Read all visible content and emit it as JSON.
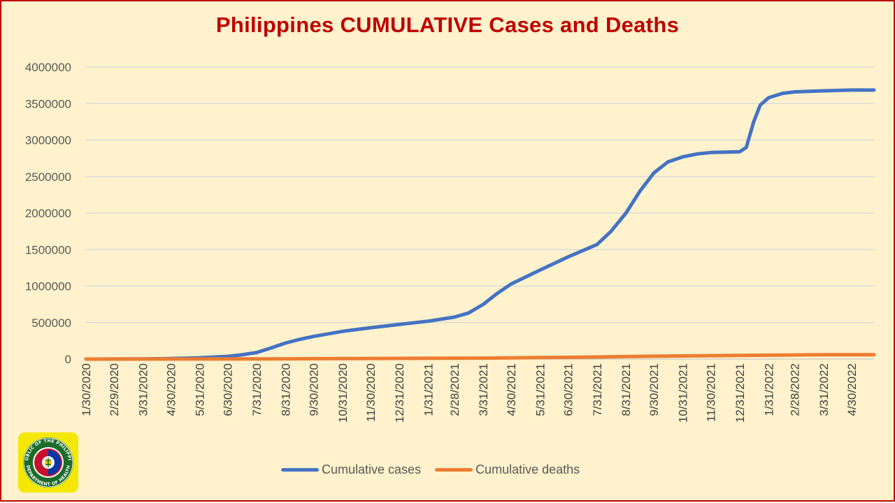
{
  "chart_data": {
    "type": "line",
    "title": "Philippines CUMULATIVE Cases and Deaths",
    "xlabel": "",
    "ylabel": "",
    "ylim": [
      0,
      4000000
    ],
    "yticks": [
      0,
      500000,
      1000000,
      1500000,
      2000000,
      2500000,
      3000000,
      3500000,
      4000000
    ],
    "ytick_labels": [
      "0",
      "500000",
      "1000000",
      "1500000",
      "2000000",
      "2500000",
      "3000000",
      "3500000",
      "4000000"
    ],
    "xlim": [
      "1/30/2020",
      "5/24/2022"
    ],
    "xtick_labels": [
      "1/30/2020",
      "2/29/2020",
      "3/31/2020",
      "4/30/2020",
      "5/31/2020",
      "6/30/2020",
      "7/31/2020",
      "8/31/2020",
      "9/30/2020",
      "10/31/2020",
      "11/30/2020",
      "12/31/2020",
      "1/31/2021",
      "2/28/2021",
      "3/31/2021",
      "4/30/2021",
      "5/31/2021",
      "6/30/2021",
      "7/31/2021",
      "8/31/2021",
      "9/30/2021",
      "10/31/2021",
      "11/30/2021",
      "12/31/2021",
      "1/31/2022",
      "2/28/2022",
      "3/31/2022",
      "4/30/2022"
    ],
    "grid": true,
    "legend_position": "bottom",
    "series": [
      {
        "name": "Cumulative cases",
        "color": "#4472c4",
        "points": [
          [
            "1/30/2020",
            0
          ],
          [
            "3/31/2020",
            2000
          ],
          [
            "4/30/2020",
            8000
          ],
          [
            "5/31/2020",
            18000
          ],
          [
            "6/30/2020",
            37000
          ],
          [
            "7/15/2020",
            58000
          ],
          [
            "7/31/2020",
            90000
          ],
          [
            "8/15/2020",
            150000
          ],
          [
            "8/31/2020",
            220000
          ],
          [
            "9/15/2020",
            270000
          ],
          [
            "9/30/2020",
            310000
          ],
          [
            "10/31/2020",
            380000
          ],
          [
            "11/30/2020",
            430000
          ],
          [
            "12/31/2020",
            475000
          ],
          [
            "1/31/2021",
            520000
          ],
          [
            "2/28/2021",
            575000
          ],
          [
            "3/15/2021",
            630000
          ],
          [
            "3/31/2021",
            750000
          ],
          [
            "4/15/2021",
            900000
          ],
          [
            "4/30/2021",
            1030000
          ],
          [
            "5/31/2021",
            1220000
          ],
          [
            "6/30/2021",
            1400000
          ],
          [
            "7/31/2021",
            1570000
          ],
          [
            "8/15/2021",
            1750000
          ],
          [
            "8/31/2021",
            2000000
          ],
          [
            "9/15/2021",
            2300000
          ],
          [
            "9/30/2021",
            2550000
          ],
          [
            "10/15/2021",
            2700000
          ],
          [
            "10/31/2021",
            2770000
          ],
          [
            "11/15/2021",
            2810000
          ],
          [
            "11/30/2021",
            2830000
          ],
          [
            "12/15/2021",
            2835000
          ],
          [
            "12/31/2021",
            2840000
          ],
          [
            "1/7/2022",
            2900000
          ],
          [
            "1/15/2022",
            3250000
          ],
          [
            "1/22/2022",
            3480000
          ],
          [
            "1/31/2022",
            3580000
          ],
          [
            "2/15/2022",
            3640000
          ],
          [
            "2/28/2022",
            3660000
          ],
          [
            "3/31/2022",
            3675000
          ],
          [
            "4/30/2022",
            3685000
          ],
          [
            "5/24/2022",
            3685000
          ]
        ]
      },
      {
        "name": "Cumulative deaths",
        "color": "#ed7d31",
        "points": [
          [
            "1/30/2020",
            0
          ],
          [
            "4/30/2020",
            500
          ],
          [
            "7/31/2020",
            2000
          ],
          [
            "10/31/2020",
            6500
          ],
          [
            "12/31/2020",
            9200
          ],
          [
            "3/31/2021",
            13400
          ],
          [
            "4/30/2021",
            17000
          ],
          [
            "6/30/2021",
            24000
          ],
          [
            "8/31/2021",
            34000
          ],
          [
            "9/30/2021",
            39000
          ],
          [
            "10/31/2021",
            43000
          ],
          [
            "12/31/2021",
            51000
          ],
          [
            "1/31/2022",
            53500
          ],
          [
            "2/28/2022",
            56000
          ],
          [
            "3/31/2022",
            59500
          ],
          [
            "4/30/2022",
            60200
          ],
          [
            "5/24/2022",
            60400
          ]
        ]
      }
    ]
  },
  "logo": {
    "ring_top_text": "REPUBLIC OF THE PHILIPPINES",
    "ring_bottom_text": "DEPARTMENT OF HEALTH"
  }
}
